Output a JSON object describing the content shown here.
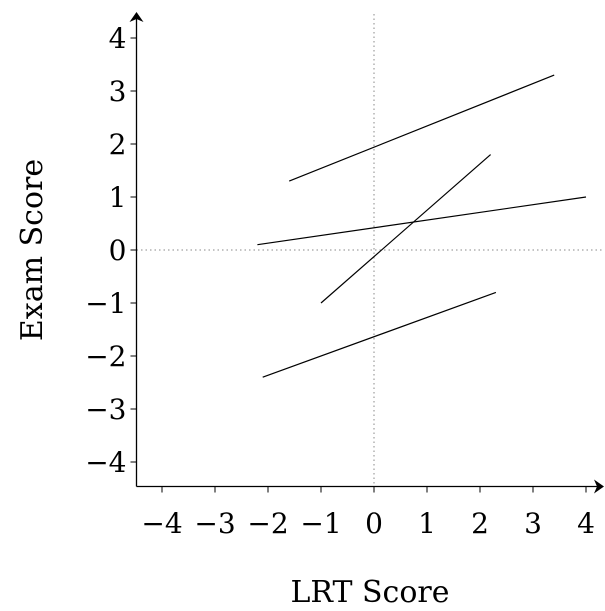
{
  "chart_data": {
    "type": "line",
    "xlabel": "LRT Score",
    "ylabel": "Exam Score",
    "xlim": [
      -4.5,
      4.4
    ],
    "ylim": [
      -4.5,
      4.4
    ],
    "x_ticks": [
      -4,
      -3,
      -2,
      -1,
      0,
      1,
      2,
      3,
      4
    ],
    "y_ticks": [
      -4,
      -3,
      -2,
      -1,
      0,
      1,
      2,
      3,
      4
    ],
    "x_tick_labels": [
      "−4",
      "−3",
      "−2",
      "−1",
      "0",
      "1",
      "2",
      "3",
      "4"
    ],
    "y_tick_labels": [
      "−4",
      "−3",
      "−2",
      "−1",
      "0",
      "1",
      "2",
      "3",
      "4"
    ],
    "reference_lines": {
      "x": 0,
      "y": 0,
      "style": "dotted"
    },
    "segments": [
      {
        "x": [
          -1.6,
          3.4
        ],
        "y": [
          1.3,
          3.3
        ]
      },
      {
        "x": [
          -1.0,
          2.2
        ],
        "y": [
          -1.0,
          1.8
        ]
      },
      {
        "x": [
          -2.2,
          4.0
        ],
        "y": [
          0.1,
          1.0
        ]
      },
      {
        "x": [
          -2.1,
          2.3
        ],
        "y": [
          -2.4,
          -0.8
        ]
      }
    ]
  }
}
